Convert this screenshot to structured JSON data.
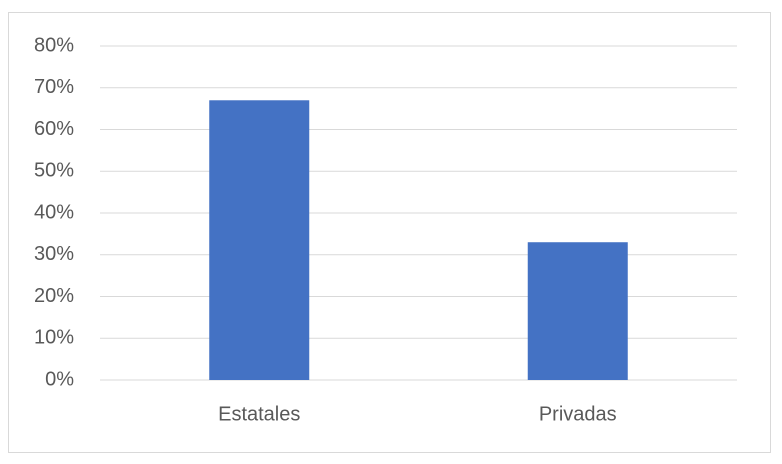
{
  "chart_data": {
    "type": "bar",
    "categories": [
      "Estatales",
      "Privadas"
    ],
    "values": [
      67,
      33
    ],
    "color": "#4472c4",
    "ylim": [
      0,
      80
    ],
    "yticks": [
      {
        "value": 0,
        "label": "0%"
      },
      {
        "value": 10,
        "label": "10%"
      },
      {
        "value": 20,
        "label": "20%"
      },
      {
        "value": 30,
        "label": "30%"
      },
      {
        "value": 40,
        "label": "40%"
      },
      {
        "value": 50,
        "label": "50%"
      },
      {
        "value": 60,
        "label": "60%"
      },
      {
        "value": 70,
        "label": "70%"
      },
      {
        "value": 80,
        "label": "80%"
      }
    ],
    "grid": true
  }
}
